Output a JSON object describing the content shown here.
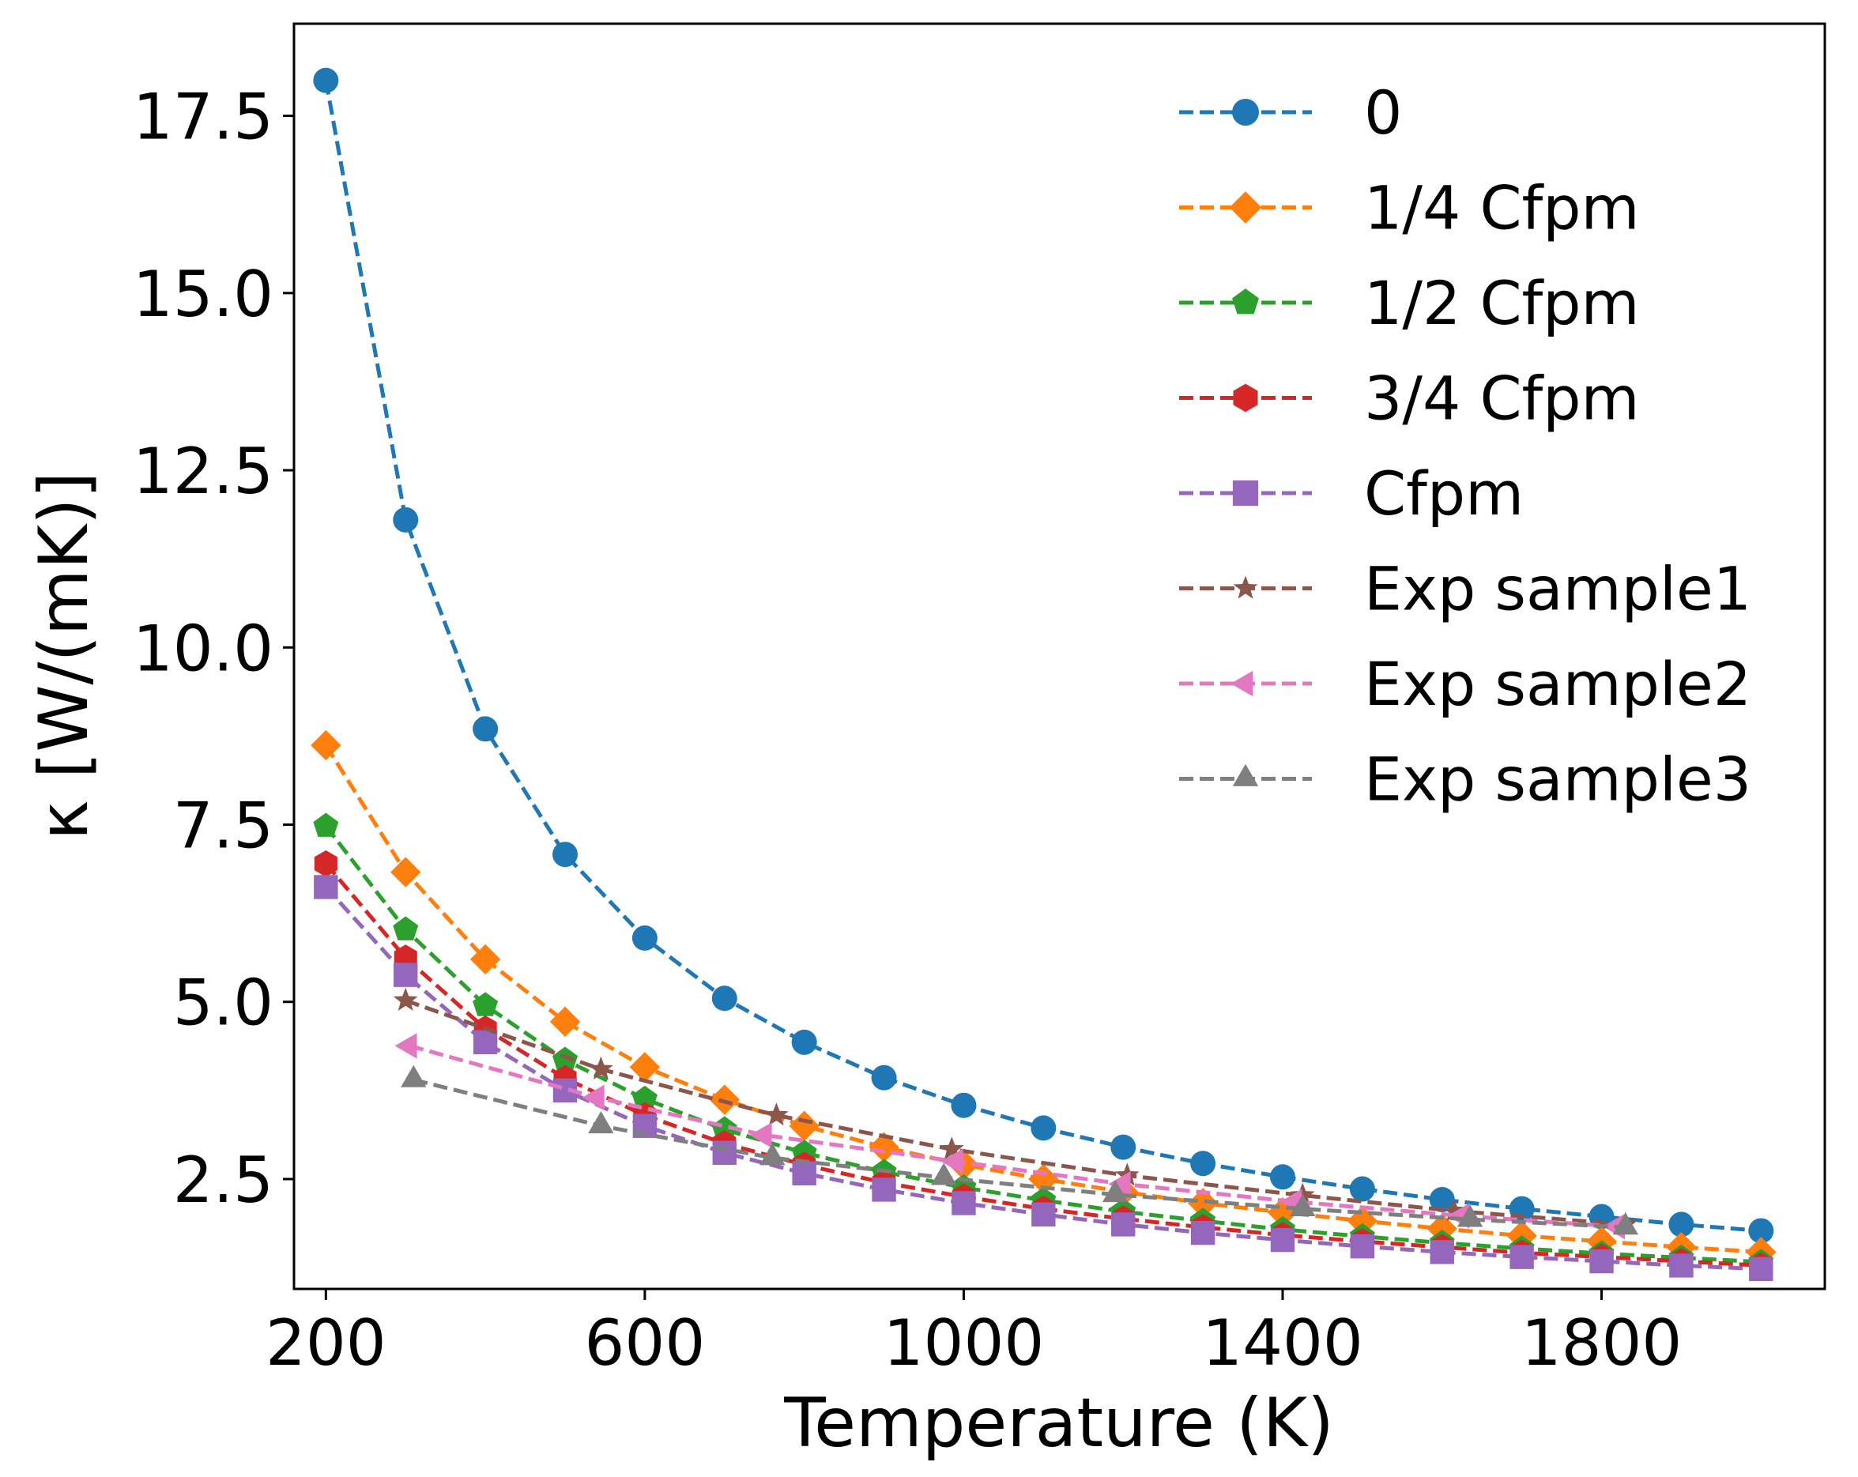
{
  "chart_data": {
    "type": "line",
    "title": "",
    "xlabel": "Temperature (K)",
    "ylabel": "κ [W/(mK)]",
    "xlim": [
      160,
      2080
    ],
    "ylim": [
      0.95,
      18.8
    ],
    "xticks": [
      200,
      600,
      1000,
      1400,
      1800
    ],
    "xtick_labels": [
      "200",
      "600",
      "1000",
      "1400",
      "1800"
    ],
    "yticks": [
      2.5,
      5.0,
      7.5,
      10.0,
      12.5,
      15.0,
      17.5
    ],
    "ytick_labels": [
      "2.5",
      "5.0",
      "7.5",
      "10.0",
      "12.5",
      "15.0",
      "17.5"
    ],
    "legend_position": "top-right",
    "series": [
      {
        "name": "0",
        "color": "#1f77b4",
        "marker": "circle",
        "x": [
          200,
          300,
          400,
          500,
          600,
          700,
          800,
          900,
          1000,
          1100,
          1200,
          1300,
          1400,
          1500,
          1600,
          1700,
          1800,
          1900,
          2000
        ],
        "y": [
          18.0,
          11.8,
          8.85,
          7.08,
          5.9,
          5.05,
          4.43,
          3.93,
          3.54,
          3.22,
          2.95,
          2.72,
          2.53,
          2.36,
          2.21,
          2.08,
          1.97,
          1.86,
          1.77
        ]
      },
      {
        "name": "1/4 Cfpm",
        "color": "#ff7f0e",
        "marker": "diamond",
        "x": [
          200,
          300,
          400,
          500,
          600,
          700,
          800,
          900,
          1000,
          1100,
          1200,
          1300,
          1400,
          1500,
          1600,
          1700,
          1800,
          1900,
          2000
        ],
        "y": [
          8.62,
          6.83,
          5.6,
          4.72,
          4.08,
          3.62,
          3.25,
          2.95,
          2.7,
          2.5,
          2.32,
          2.16,
          2.03,
          1.91,
          1.8,
          1.7,
          1.62,
          1.54,
          1.47
        ]
      },
      {
        "name": "1/2 Cfpm",
        "color": "#2ca02c",
        "marker": "pentagon",
        "x": [
          200,
          300,
          400,
          500,
          600,
          700,
          800,
          900,
          1000,
          1100,
          1200,
          1300,
          1400,
          1500,
          1600,
          1700,
          1800,
          1900,
          2000
        ],
        "y": [
          7.48,
          6.02,
          4.95,
          4.18,
          3.63,
          3.2,
          2.87,
          2.6,
          2.38,
          2.2,
          2.04,
          1.91,
          1.79,
          1.69,
          1.6,
          1.52,
          1.45,
          1.39,
          1.33
        ]
      },
      {
        "name": "3/4 Cfpm",
        "color": "#d62728",
        "marker": "hexagon",
        "x": [
          200,
          300,
          400,
          500,
          600,
          700,
          800,
          900,
          1000,
          1100,
          1200,
          1300,
          1400,
          1500,
          1600,
          1700,
          1800,
          1900,
          2000
        ],
        "y": [
          6.95,
          5.62,
          4.62,
          3.92,
          3.4,
          3.0,
          2.7,
          2.45,
          2.25,
          2.08,
          1.94,
          1.82,
          1.71,
          1.62,
          1.54,
          1.46,
          1.4,
          1.34,
          1.28
        ]
      },
      {
        "name": "Cfpm",
        "color": "#9467bd",
        "marker": "square",
        "x": [
          200,
          300,
          400,
          500,
          600,
          700,
          800,
          900,
          1000,
          1100,
          1200,
          1300,
          1400,
          1500,
          1600,
          1700,
          1800,
          1900,
          2000
        ],
        "y": [
          6.62,
          5.38,
          4.43,
          3.75,
          3.25,
          2.87,
          2.58,
          2.35,
          2.16,
          2.0,
          1.86,
          1.74,
          1.64,
          1.55,
          1.47,
          1.4,
          1.34,
          1.28,
          1.23
        ]
      },
      {
        "name": "Exp sample1",
        "color": "#8c564b",
        "marker": "star",
        "x": [
          300,
          545,
          765,
          985,
          1205,
          1425,
          1615,
          1830
        ],
        "y": [
          5.02,
          4.05,
          3.4,
          2.92,
          2.55,
          2.27,
          2.05,
          1.86
        ]
      },
      {
        "name": "Exp sample2",
        "color": "#e377c2",
        "marker": "triangle-left",
        "x": [
          305,
          540,
          750,
          990,
          1200,
          1415,
          1625,
          1820
        ],
        "y": [
          4.38,
          3.65,
          3.12,
          2.75,
          2.43,
          2.18,
          1.98,
          1.83
        ]
      },
      {
        "name": "Exp sample3",
        "color": "#7f7f7f",
        "marker": "triangle-up",
        "x": [
          310,
          545,
          760,
          975,
          1190,
          1425,
          1635,
          1830
        ],
        "y": [
          3.9,
          3.25,
          2.8,
          2.52,
          2.28,
          2.08,
          1.93,
          1.82
        ]
      }
    ]
  }
}
